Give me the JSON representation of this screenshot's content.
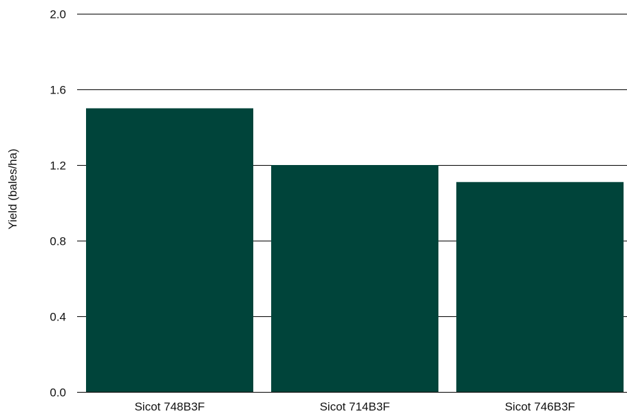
{
  "chart_data": {
    "type": "bar",
    "title": "",
    "xlabel": "",
    "ylabel": "Yield (bales/ha)",
    "categories": [
      "Sicot 748B3F",
      "Sicot 714B3F",
      "Sicot 746B3F"
    ],
    "values": [
      1.5,
      1.2,
      1.11
    ],
    "ylim": [
      0.0,
      2.0
    ],
    "yticks": [
      "0.0",
      "0.4",
      "0.8",
      "1.2",
      "1.6",
      "2.0"
    ],
    "grid": "horizontal",
    "legend": "none",
    "bar_color": "#00443a"
  }
}
